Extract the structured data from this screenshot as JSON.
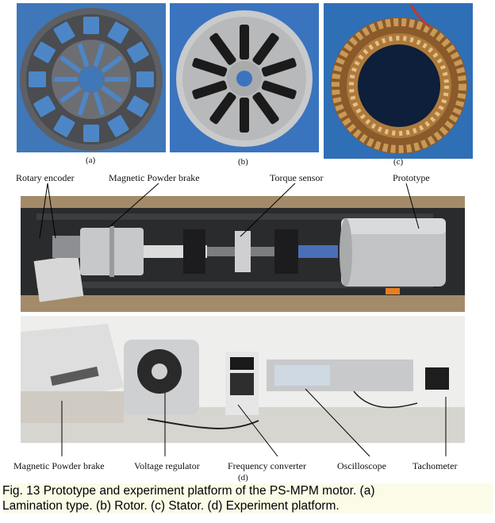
{
  "panels": {
    "a": "(a)",
    "b": "(b)",
    "c": "(c)",
    "d": "(d)"
  },
  "top_labels": {
    "rotary_encoder": "Rotary encoder",
    "magnetic_powder_brake": "Magnetic Powder brake",
    "torque_sensor": "Torque sensor",
    "prototype": "Prototype"
  },
  "bottom_labels": {
    "magnetic_powder_brake": "Magnetic Powder brake",
    "voltage_regulator": "Voltage regulator",
    "frequency_converter": "Frequency converter",
    "oscilloscope": "Oscilloscope",
    "tachometer": "Tachometer"
  },
  "caption": {
    "line1": "Fig. 13  Prototype and experiment platform of the PS-MPM motor. (a)",
    "line2": "Lamination type. (b) Rotor. (c) Stator. (d) Experiment platform."
  }
}
